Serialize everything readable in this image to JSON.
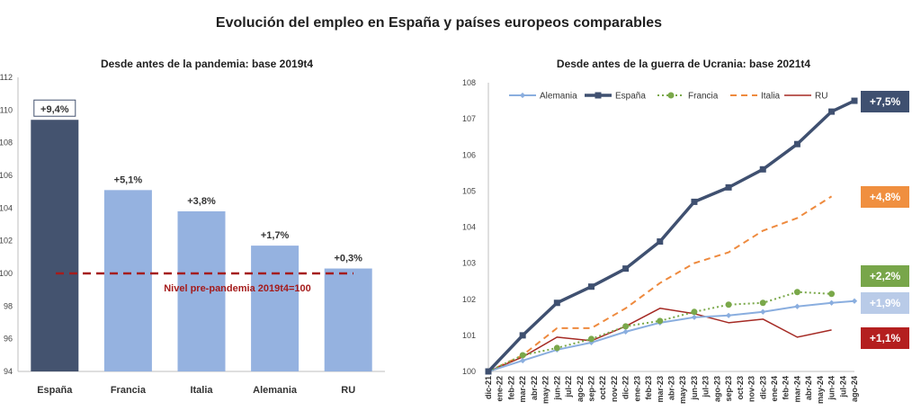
{
  "title": "Evolución del empleo en España y países europeos comparables",
  "colors": {
    "Espana": "#3f5070",
    "Francia": "#7aa84a",
    "Italia": "#ee8a3e",
    "Alemania": "#8aaedf",
    "RU": "#a52a24",
    "ref_line": "#a51c1c",
    "bar_espana": "#44536f",
    "bar_others": "#95b2e0"
  },
  "chart_data": [
    {
      "type": "bar",
      "title": "Desde antes de la pandemia: base 2019t4",
      "categories": [
        "España",
        "Francia",
        "Italia",
        "Alemania",
        "RU"
      ],
      "values": [
        109.4,
        105.1,
        103.8,
        101.7,
        100.3
      ],
      "data_labels": [
        "+9,4%",
        "+5,1%",
        "+3,8%",
        "+1,7%",
        "+0,3%"
      ],
      "ylim": [
        94,
        112
      ],
      "yticks": [
        "94",
        "96",
        "98",
        "100",
        "102",
        "104",
        "106",
        "108",
        "110",
        "112"
      ],
      "reference_line": {
        "value": 100,
        "label": "Nivel pre-pandemia 2019t4=100"
      }
    },
    {
      "type": "line",
      "title": "Desde antes de la guerra de Ucrania: base 2021t4",
      "x": [
        "dic-21",
        "ene-22",
        "feb-22",
        "mar-22",
        "abr-22",
        "may-22",
        "jun-22",
        "jul-22",
        "ago-22",
        "sep-22",
        "oct-22",
        "nov-22",
        "dic-22",
        "ene-23",
        "feb-23",
        "mar-23",
        "abr-23",
        "may-23",
        "jun-23",
        "jul-23",
        "ago-23",
        "sep-23",
        "oct-23",
        "nov-23",
        "dic-23",
        "ene-24",
        "feb-24",
        "mar-24",
        "abr-24",
        "may-24",
        "jun-24",
        "jul-24",
        "ago-24"
      ],
      "ylim": [
        100,
        108
      ],
      "yticks": [
        "100",
        "101",
        "102",
        "103",
        "104",
        "105",
        "106",
        "107",
        "108"
      ],
      "legend_position": "top",
      "series": [
        {
          "name": "Alemania",
          "values": [
            100.0,
            null,
            null,
            100.3,
            null,
            null,
            100.6,
            null,
            null,
            100.8,
            null,
            null,
            101.1,
            null,
            null,
            101.35,
            null,
            null,
            101.5,
            null,
            null,
            101.55,
            null,
            null,
            101.65,
            null,
            null,
            101.8,
            null,
            null,
            101.9,
            null,
            101.95
          ]
        },
        {
          "name": "España",
          "values": [
            100.0,
            null,
            null,
            101.0,
            null,
            null,
            101.9,
            null,
            null,
            102.35,
            null,
            null,
            102.85,
            null,
            null,
            103.6,
            null,
            null,
            104.7,
            null,
            null,
            105.1,
            null,
            null,
            105.6,
            null,
            null,
            106.3,
            null,
            null,
            107.2,
            null,
            107.5
          ]
        },
        {
          "name": "Francia",
          "values": [
            100.0,
            null,
            null,
            100.45,
            null,
            null,
            100.65,
            null,
            null,
            100.9,
            null,
            null,
            101.25,
            null,
            null,
            101.4,
            null,
            null,
            101.65,
            null,
            null,
            101.85,
            null,
            null,
            101.9,
            null,
            null,
            102.2,
            null,
            null,
            102.15,
            null,
            null
          ]
        },
        {
          "name": "Italia",
          "values": [
            100.0,
            null,
            null,
            100.45,
            null,
            null,
            101.2,
            null,
            null,
            101.2,
            null,
            null,
            101.75,
            null,
            null,
            102.45,
            null,
            null,
            103.0,
            null,
            null,
            103.3,
            null,
            null,
            103.9,
            null,
            null,
            104.25,
            null,
            null,
            104.85,
            null,
            null
          ]
        },
        {
          "name": "RU",
          "values": [
            100.0,
            null,
            null,
            100.4,
            null,
            null,
            100.95,
            null,
            null,
            100.85,
            null,
            null,
            101.25,
            null,
            null,
            101.75,
            null,
            null,
            101.6,
            null,
            null,
            101.35,
            null,
            null,
            101.45,
            null,
            null,
            100.95,
            null,
            null,
            101.15,
            null,
            null
          ]
        }
      ],
      "end_labels": [
        {
          "series": "España",
          "text": "+7,5%"
        },
        {
          "series": "Italia",
          "text": "+4,8%"
        },
        {
          "series": "Francia",
          "text": "+2,2%"
        },
        {
          "series": "Alemania",
          "text": "+1,9%"
        },
        {
          "series": "RU",
          "text": "+1,1%"
        }
      ]
    }
  ]
}
